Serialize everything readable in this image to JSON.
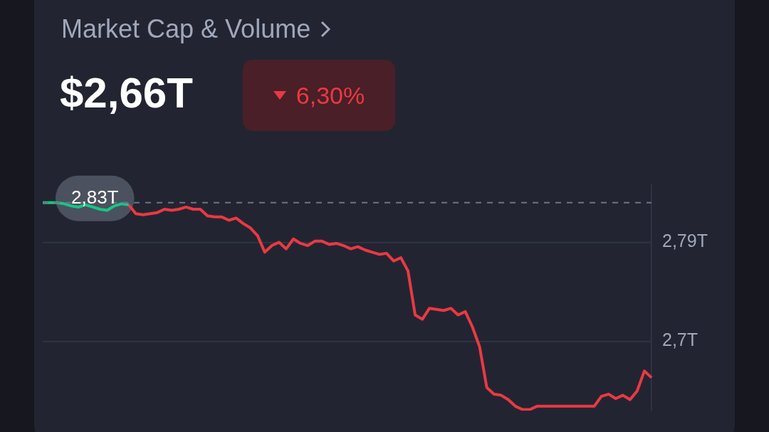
{
  "chart_data": {
    "type": "line",
    "title": "Market Cap & Volume",
    "subtitle": "$2,66T",
    "annotations": [
      "6,30%"
    ],
    "categories": [
      null,
      null,
      null,
      null,
      null,
      null,
      null,
      null,
      null,
      null,
      null,
      null,
      null,
      null,
      null,
      null,
      null,
      null,
      null,
      null,
      null,
      null,
      null,
      null,
      null,
      null,
      null,
      null,
      null,
      null,
      null,
      null,
      null,
      null,
      null,
      null,
      null,
      null,
      null,
      null,
      null,
      null,
      null,
      null,
      null,
      null,
      null,
      null,
      null,
      null,
      null,
      null,
      null,
      null,
      null,
      null,
      null,
      null,
      null,
      null,
      null,
      null,
      null,
      null,
      null,
      null,
      null,
      null,
      null,
      null,
      null,
      null,
      null,
      null,
      null,
      null,
      null,
      null,
      null,
      null,
      null,
      null,
      null,
      null,
      null,
      null
    ],
    "series": [
      {
        "color": "#16c784",
        "values": [
          2.826,
          2.826,
          2.826,
          2.825,
          2.823,
          2.822,
          2.824,
          2.822,
          2.82,
          2.819,
          2.823,
          2.825,
          2.824,
          null,
          null,
          null,
          null,
          null,
          null,
          null,
          null,
          null,
          null,
          null,
          null,
          null,
          null,
          null,
          null,
          null,
          null,
          null,
          null,
          null,
          null,
          null,
          null,
          null,
          null,
          null,
          null,
          null,
          null,
          null,
          null,
          null,
          null,
          null,
          null,
          null,
          null,
          null,
          null,
          null,
          null,
          null,
          null,
          null,
          null,
          null,
          null,
          null,
          null,
          null,
          null,
          null,
          null,
          null,
          null,
          null,
          null,
          null,
          null,
          null,
          null,
          null,
          null,
          null,
          null,
          null,
          null,
          null,
          null,
          null,
          null,
          null
        ]
      },
      {
        "color": "#ea3943",
        "values": [
          null,
          null,
          null,
          null,
          null,
          null,
          null,
          null,
          null,
          null,
          null,
          null,
          2.824,
          2.816,
          2.815,
          2.816,
          2.817,
          2.82,
          2.819,
          2.82,
          2.822,
          2.82,
          2.82,
          2.814,
          2.813,
          2.813,
          2.81,
          2.812,
          2.807,
          2.803,
          2.796,
          2.781,
          2.787,
          2.79,
          2.784,
          2.793,
          2.789,
          2.787,
          2.791,
          2.791,
          2.788,
          2.789,
          2.787,
          2.784,
          2.786,
          2.783,
          2.781,
          2.779,
          2.78,
          2.773,
          2.776,
          2.764,
          2.724,
          2.72,
          2.73,
          2.729,
          2.728,
          2.73,
          2.724,
          2.727,
          2.713,
          2.695,
          2.658,
          2.652,
          2.651,
          2.647,
          2.641,
          2.638,
          2.638,
          2.641,
          null,
          null,
          null,
          null,
          null,
          null,
          null,
          2.641,
          2.65,
          2.652,
          2.648,
          2.651,
          2.647,
          2.655,
          2.673,
          2.667
        ]
      }
    ],
    "ylim": [
      2.637,
      2.842
    ],
    "yticks": [
      {
        "value": 2.7,
        "label": "2,7T"
      },
      {
        "value": 2.79,
        "label": "2,79T"
      }
    ],
    "grid": "y",
    "tick_labels": "y",
    "marker": "none",
    "line_style": "solid",
    "legend": false,
    "ref_lines": [
      {
        "axis": "y",
        "value": 2.826,
        "label": "2,83T",
        "color": "#6e7385",
        "line_style": "dashed"
      }
    ]
  }
}
